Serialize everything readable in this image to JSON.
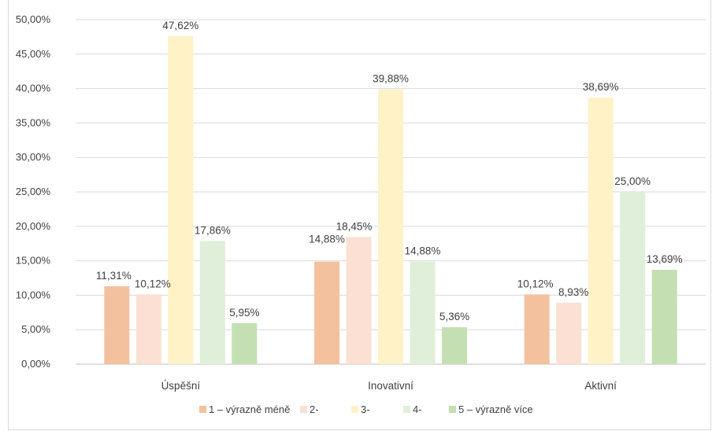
{
  "chart_data": {
    "type": "bar",
    "title": "",
    "categories": [
      "Úspěšní",
      "Inovativní",
      "Aktivní"
    ],
    "series": [
      {
        "name": "1 – výrazně méně",
        "color": "#f4c19f",
        "values": [
          11.31,
          14.88,
          10.12
        ]
      },
      {
        "name": "2-",
        "color": "#fbe0d3",
        "values": [
          10.12,
          18.45,
          8.93
        ]
      },
      {
        "name": "3-",
        "color": "#fff2c7",
        "values": [
          47.62,
          39.88,
          38.69
        ]
      },
      {
        "name": "4-",
        "color": "#e0efd9",
        "values": [
          17.86,
          14.88,
          25.0
        ]
      },
      {
        "name": "5 – výrazně více",
        "color": "#c4e0b3",
        "values": [
          5.95,
          5.36,
          13.69
        ]
      }
    ],
    "ylim": [
      0,
      50
    ],
    "yticks": [
      "0,00%",
      "5,00%",
      "10,00%",
      "15,00%",
      "20,00%",
      "25,00%",
      "30,00%",
      "35,00%",
      "40,00%",
      "45,00%",
      "50,00%"
    ],
    "data_labels": [
      [
        "11,31%",
        "14,88%",
        "10,12%"
      ],
      [
        "10,12%",
        "18,45%",
        "8,93%"
      ],
      [
        "47,62%",
        "39,88%",
        "38,69%"
      ],
      [
        "17,86%",
        "14,88%",
        "25,00%"
      ],
      [
        "5,95%",
        "5,36%",
        "13,69%"
      ]
    ],
    "legend_position": "bottom",
    "grid": true
  }
}
